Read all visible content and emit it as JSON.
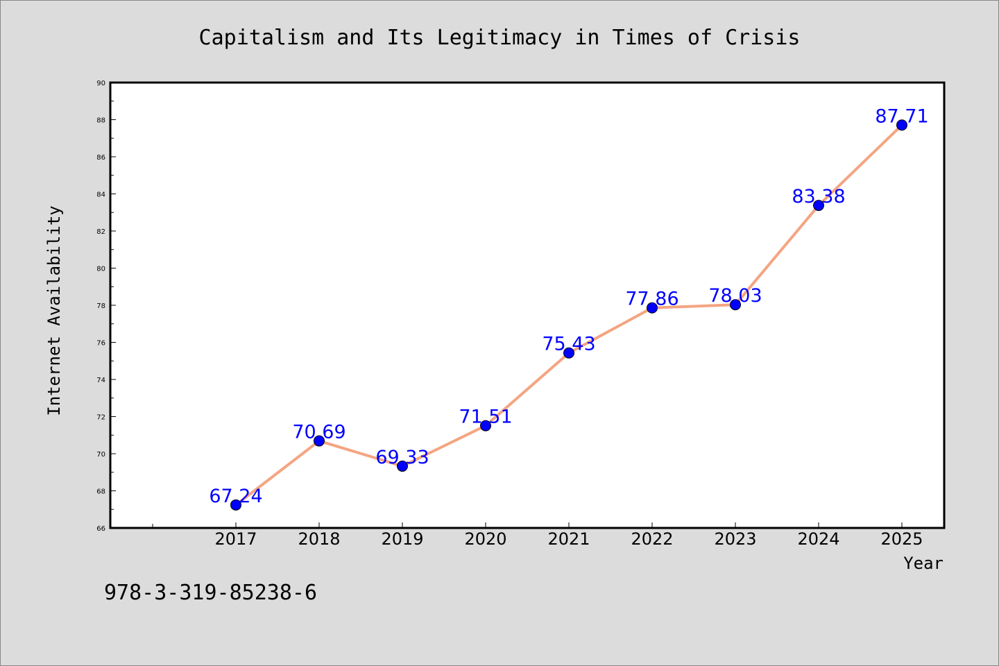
{
  "chart_data": {
    "type": "line",
    "title": "Capitalism and Its Legitimacy in Times of Crisis",
    "xlabel": "Year",
    "ylabel": "Internet Availability",
    "categories": [
      "2017",
      "2018",
      "2019",
      "2020",
      "2021",
      "2022",
      "2023",
      "2024",
      "2025"
    ],
    "series": [
      {
        "values": [
          67.24,
          70.69,
          69.33,
          71.51,
          75.43,
          77.86,
          78.03,
          83.38,
          87.71
        ],
        "line_color": "#f4a582",
        "marker_color": "#0000ff"
      }
    ],
    "data_labels": [
      "67.24",
      "70.69",
      "69.33",
      "71.51",
      "75.43",
      "77.86",
      "78.03",
      "83.38",
      "87.71"
    ],
    "ylim": [
      66,
      90
    ],
    "yticks": [
      "66",
      "68",
      "70",
      "72",
      "74",
      "76",
      "78",
      "80",
      "82",
      "84",
      "86",
      "88",
      "90"
    ],
    "grid": false,
    "legend": "none"
  },
  "footer_text": "978-3-319-85238-6",
  "colors": {
    "background": "#dcdcdc",
    "plot_area": "#ffffff",
    "label_color": "#0000ff"
  }
}
